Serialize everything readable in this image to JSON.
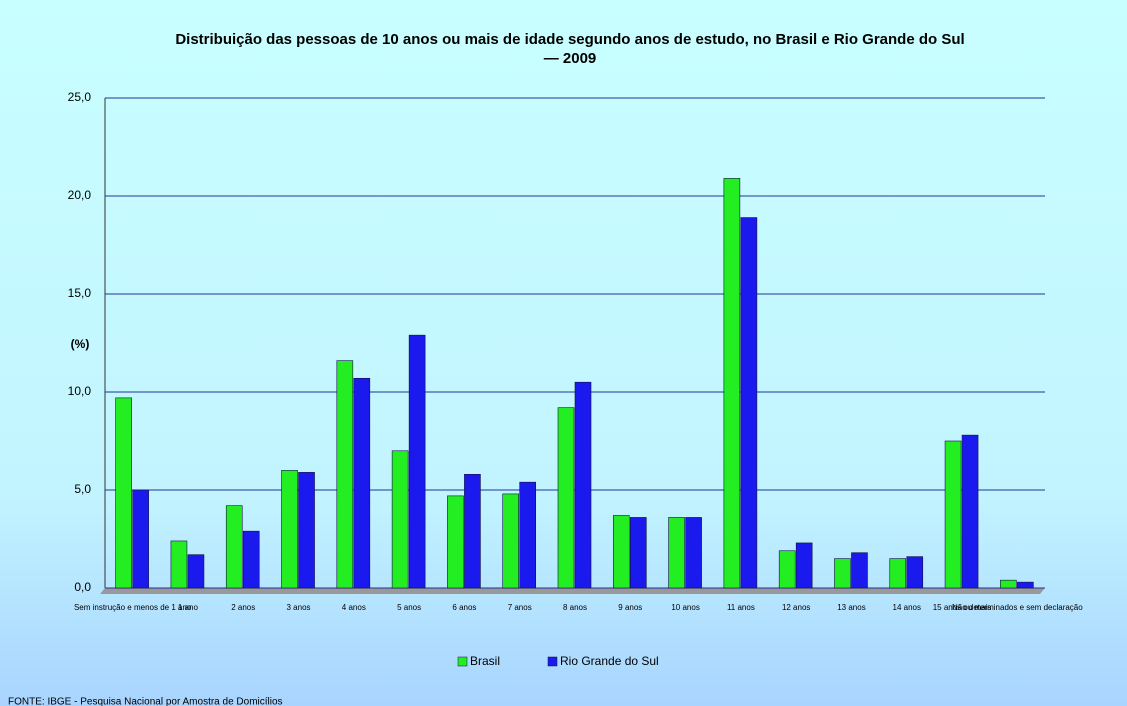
{
  "chart_data": {
    "type": "bar",
    "title": "Distribuição das pessoas de 10 anos ou mais de idade segundo anos de estudo, no Brasil e Rio Grande do Sul — 2009",
    "y_label": "(%)",
    "source": "FONTE: IBGE - Pesquisa Nacional por Amostra de Domicílios",
    "categories": [
      "Sem instrução e menos de 1 ano",
      "1 ano",
      "2 anos",
      "3 anos",
      "4 anos",
      "5 anos",
      "6 anos",
      "7 anos",
      "8 anos",
      "9 anos",
      "10 anos",
      "11 anos",
      "12 anos",
      "13 anos",
      "14 anos",
      "15 anos ou mais",
      "Não determinados e sem declaração"
    ],
    "series": [
      {
        "name": "Brasil",
        "color": "#22ee22",
        "values": [
          9.7,
          2.4,
          4.2,
          6.0,
          11.6,
          7.0,
          4.7,
          4.8,
          9.2,
          3.7,
          3.6,
          20.9,
          1.9,
          1.5,
          1.5,
          7.5,
          0.4
        ]
      },
      {
        "name": "Rio Grande do Sul",
        "color": "#1a1aee",
        "values": [
          5.0,
          1.7,
          2.9,
          5.9,
          10.7,
          12.9,
          5.8,
          5.4,
          10.5,
          3.6,
          3.6,
          18.9,
          2.3,
          1.8,
          1.6,
          7.8,
          0.3
        ]
      }
    ],
    "ylim": [
      0,
      25
    ],
    "yticks": [
      {
        "value": 0,
        "label": "0,0"
      },
      {
        "value": 5,
        "label": "5,0"
      },
      {
        "value": 10,
        "label": "10,0"
      },
      {
        "value": 15,
        "label": "15,0"
      },
      {
        "value": 20,
        "label": "20,0"
      },
      {
        "value": 25,
        "label": "25,0"
      }
    ],
    "grid": true,
    "legend": "bottom"
  }
}
